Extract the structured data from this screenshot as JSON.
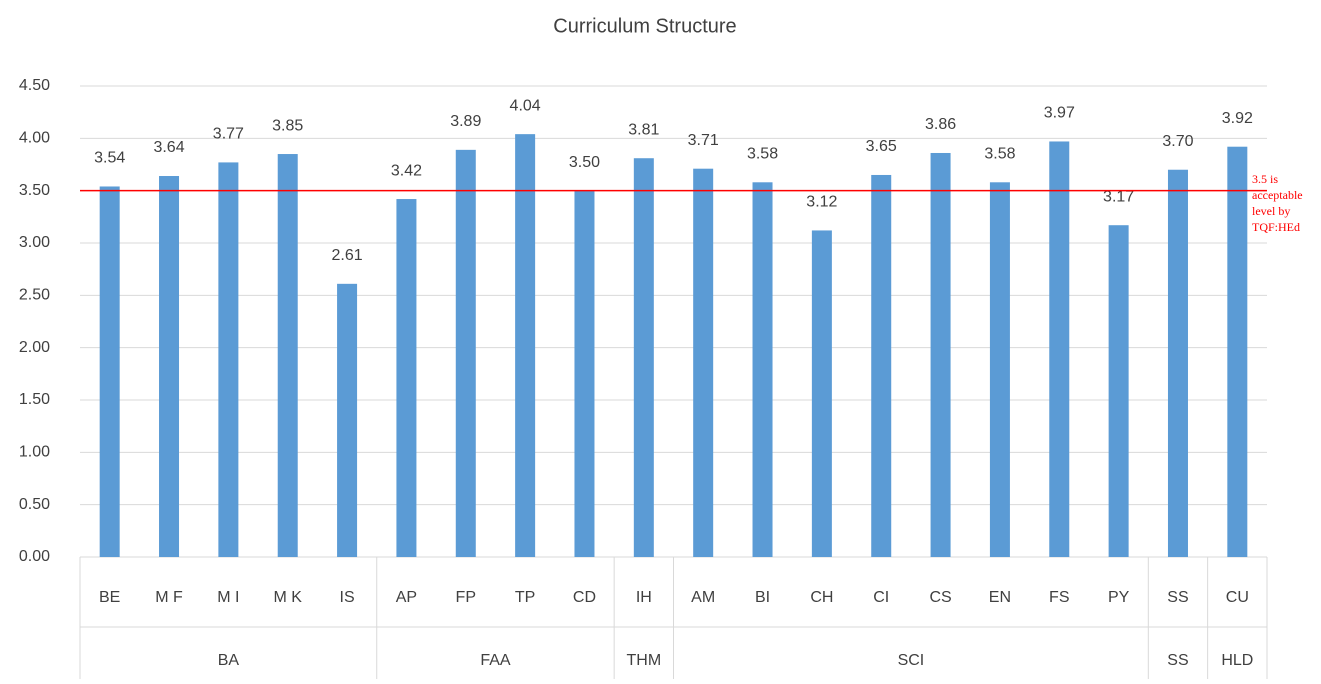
{
  "chart_data": {
    "type": "bar",
    "title": "Curriculum Structure",
    "categories": [
      "BE",
      "M F",
      "M I",
      "M K",
      "IS",
      "AP",
      "FP",
      "TP",
      "CD",
      "IH",
      "AM",
      "BI",
      "CH",
      "CI",
      "CS",
      "EN",
      "FS",
      "PY",
      "SS",
      "CU"
    ],
    "values": [
      3.54,
      3.64,
      3.77,
      3.85,
      2.61,
      3.42,
      3.89,
      4.04,
      3.5,
      3.81,
      3.71,
      3.58,
      3.12,
      3.65,
      3.86,
      3.58,
      3.97,
      3.17,
      3.7,
      3.92
    ],
    "value_labels": [
      "3.54",
      "3.64",
      "3.77",
      "3.85",
      "2.61",
      "3.42",
      "3.89",
      "4.04",
      "3.50",
      "3.81",
      "3.71",
      "3.58",
      "3.12",
      "3.65",
      "3.86",
      "3.58",
      "3.97",
      "3.17",
      "3.70",
      "3.92"
    ],
    "groups": [
      {
        "name": "BA",
        "size": 5
      },
      {
        "name": "FAA",
        "size": 4
      },
      {
        "name": "THM",
        "size": 1
      },
      {
        "name": "SCI",
        "size": 8
      },
      {
        "name": "SS",
        "size": 1
      },
      {
        "name": "HLD",
        "size": 1
      }
    ],
    "color": "#5b9bd5",
    "ylim": [
      0,
      4.5
    ],
    "yticks": [
      {
        "value": 0,
        "label": "0.00"
      },
      {
        "value": 0.5,
        "label": "0.50"
      },
      {
        "value": 1,
        "label": "1.00"
      },
      {
        "value": 1.5,
        "label": "1.50"
      },
      {
        "value": 2,
        "label": "2.00"
      },
      {
        "value": 2.5,
        "label": "2.50"
      },
      {
        "value": 3,
        "label": "3.00"
      },
      {
        "value": 3.5,
        "label": "3.50"
      },
      {
        "value": 4,
        "label": "4.00"
      },
      {
        "value": 4.5,
        "label": "4.50"
      }
    ],
    "grid": true,
    "reference_line": {
      "value": 3.5,
      "color": "#ff0000",
      "label": [
        "3.5 is",
        "acceptable",
        "level by",
        "TQF:HEd"
      ]
    }
  }
}
